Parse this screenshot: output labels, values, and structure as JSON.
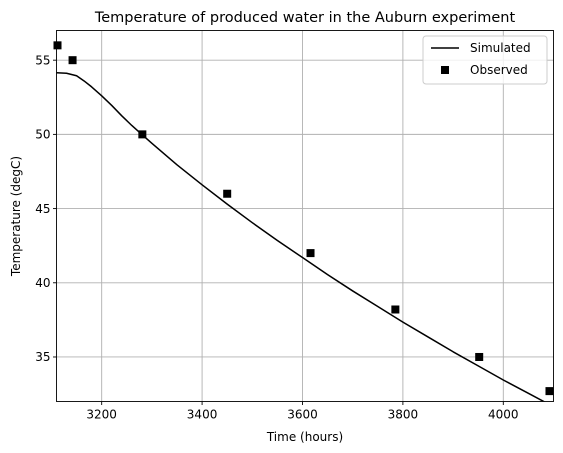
{
  "chart_data": {
    "type": "line",
    "title": "Temperature of produced water in the Auburn experiment",
    "xlabel": "Time (hours)",
    "ylabel": "Temperature (degC)",
    "xlim": [
      3110,
      4100
    ],
    "ylim": [
      32,
      57
    ],
    "xticks": [
      3200,
      3400,
      3600,
      3800,
      4000
    ],
    "yticks": [
      35,
      40,
      45,
      50,
      55
    ],
    "grid": true,
    "legend_position": "top-right",
    "series": [
      {
        "name": "Simulated",
        "style": "line",
        "color": "#000000",
        "x": [
          3110,
          3130,
          3150,
          3165,
          3180,
          3200,
          3220,
          3240,
          3260,
          3280,
          3300,
          3350,
          3400,
          3450,
          3500,
          3550,
          3600,
          3650,
          3700,
          3750,
          3800,
          3850,
          3900,
          3950,
          4000,
          4050,
          4100
        ],
        "y": [
          54.15,
          54.12,
          53.95,
          53.6,
          53.2,
          52.6,
          51.95,
          51.25,
          50.6,
          50.0,
          49.4,
          47.95,
          46.6,
          45.3,
          44.05,
          42.85,
          41.7,
          40.55,
          39.45,
          38.4,
          37.35,
          36.35,
          35.35,
          34.4,
          33.45,
          32.55,
          31.65
        ]
      },
      {
        "name": "Observed",
        "style": "marker-square",
        "color": "#000000",
        "x": [
          3112,
          3142,
          3281,
          3450,
          3616,
          3785,
          3952,
          4092
        ],
        "y": [
          56.0,
          55.0,
          50.0,
          46.0,
          42.0,
          38.2,
          35.0,
          32.7
        ]
      }
    ]
  }
}
